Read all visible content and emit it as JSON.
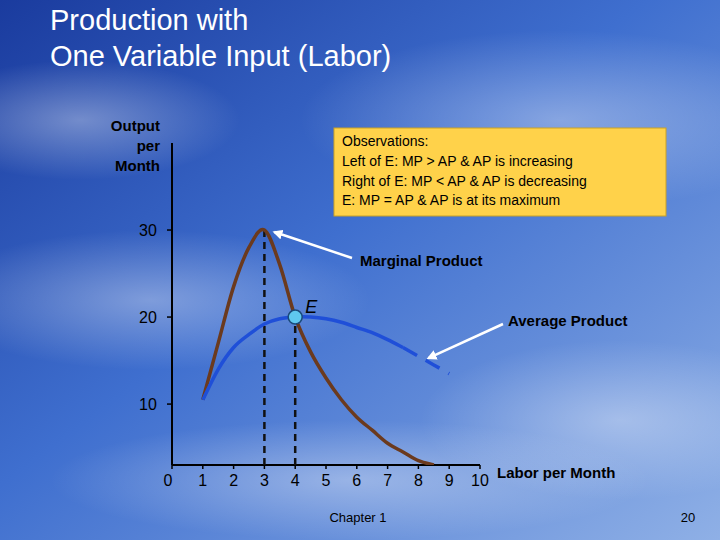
{
  "slide": {
    "title_lines": [
      "Production with",
      "One Variable Input (Labor)"
    ],
    "footer": "Chapter 1",
    "page": "20"
  },
  "chart_data": {
    "type": "line",
    "y_label": "Output per Month",
    "x_label": "Labor per Month",
    "x": [
      1,
      1.5,
      2,
      2.5,
      3,
      3.5,
      4,
      4.5,
      5,
      5.5,
      6,
      6.5,
      7,
      7.5,
      8,
      8.5,
      9
    ],
    "series": [
      {
        "name": "Marginal Product",
        "color": "#6b3a1e",
        "line_style": "solid",
        "values": [
          10.5,
          17,
          23.5,
          28,
          30,
          26,
          20,
          16,
          13,
          10.5,
          8.5,
          7,
          5.5,
          4.5,
          3.5,
          3,
          null
        ]
      },
      {
        "name": "Average Product",
        "color": "#1f4fd8",
        "line_style": "solid",
        "values": [
          10.5,
          14,
          16.5,
          18,
          19.2,
          19.8,
          20,
          20,
          19.8,
          19.4,
          18.8,
          18.2,
          17.4,
          16.5,
          null,
          null,
          null
        ]
      },
      {
        "color": "#1f4fd8",
        "line_style": "dashed",
        "values": [
          null,
          null,
          null,
          null,
          null,
          null,
          null,
          null,
          null,
          null,
          null,
          null,
          null,
          16.5,
          15.5,
          14.5,
          13.5
        ]
      }
    ],
    "xlim": [
      0,
      10
    ],
    "xticks": [
      0,
      1,
      2,
      3,
      4,
      5,
      6,
      7,
      8,
      9,
      10
    ],
    "ylim": [
      3,
      40
    ],
    "yticks": [
      10,
      20,
      30
    ],
    "grid": false,
    "point": {
      "label": "E",
      "x": 4,
      "y": 20
    },
    "reference_lines": [
      {
        "x": 3,
        "y": 30
      },
      {
        "x": 4,
        "y": 20
      }
    ],
    "annotations": [
      {
        "text": "Marginal Product",
        "x": 3,
        "y": 30
      },
      {
        "text": "Average Product",
        "x": 8,
        "y": 15.5
      }
    ],
    "observations": {
      "title": "Observations:",
      "lines": [
        "Left of E: MP > AP & AP is increasing",
        "Right of E: MP < AP & AP is decreasing",
        "E: MP = AP & AP is at its maximum"
      ]
    }
  }
}
